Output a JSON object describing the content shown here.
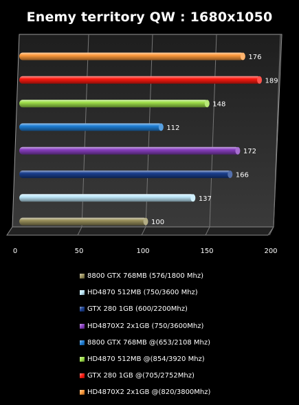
{
  "chart_data": {
    "type": "bar",
    "orientation": "horizontal",
    "title": "Enemy territory QW : 1680x1050",
    "xlabel": "",
    "ylabel": "",
    "xlim": [
      0,
      200
    ],
    "ticks": [
      0,
      50,
      100,
      150,
      200
    ],
    "grid": true,
    "legend_position": "bottom",
    "series": [
      {
        "name": "8800 GTX 768MB (576/1800 Mhz)",
        "value": 100,
        "color": "#9a915c"
      },
      {
        "name": "HD4870 512MB (750/3600 Mhz)",
        "value": 137,
        "color": "#bfe9fb"
      },
      {
        "name": "GTX 280 1GB (600/2200Mhz)",
        "value": 166,
        "color": "#1a3f8f"
      },
      {
        "name": "HD4870X2 2x1GB (750/3600Mhz)",
        "value": 172,
        "color": "#8a3fc2"
      },
      {
        "name": "8800 GTX 768MB @(653/2108 Mhz)",
        "value": 112,
        "color": "#1f7fd6"
      },
      {
        "name": "HD4870 512MB @(854/3920 Mhz)",
        "value": 148,
        "color": "#9fe04a"
      },
      {
        "name": "GTX 280 1GB @(705/2752Mhz)",
        "value": 189,
        "color": "#ff1a10"
      },
      {
        "name": "HD4870X2 2x1GB @(820/3800Mhz)",
        "value": 176,
        "color": "#ff9a3c"
      }
    ]
  }
}
